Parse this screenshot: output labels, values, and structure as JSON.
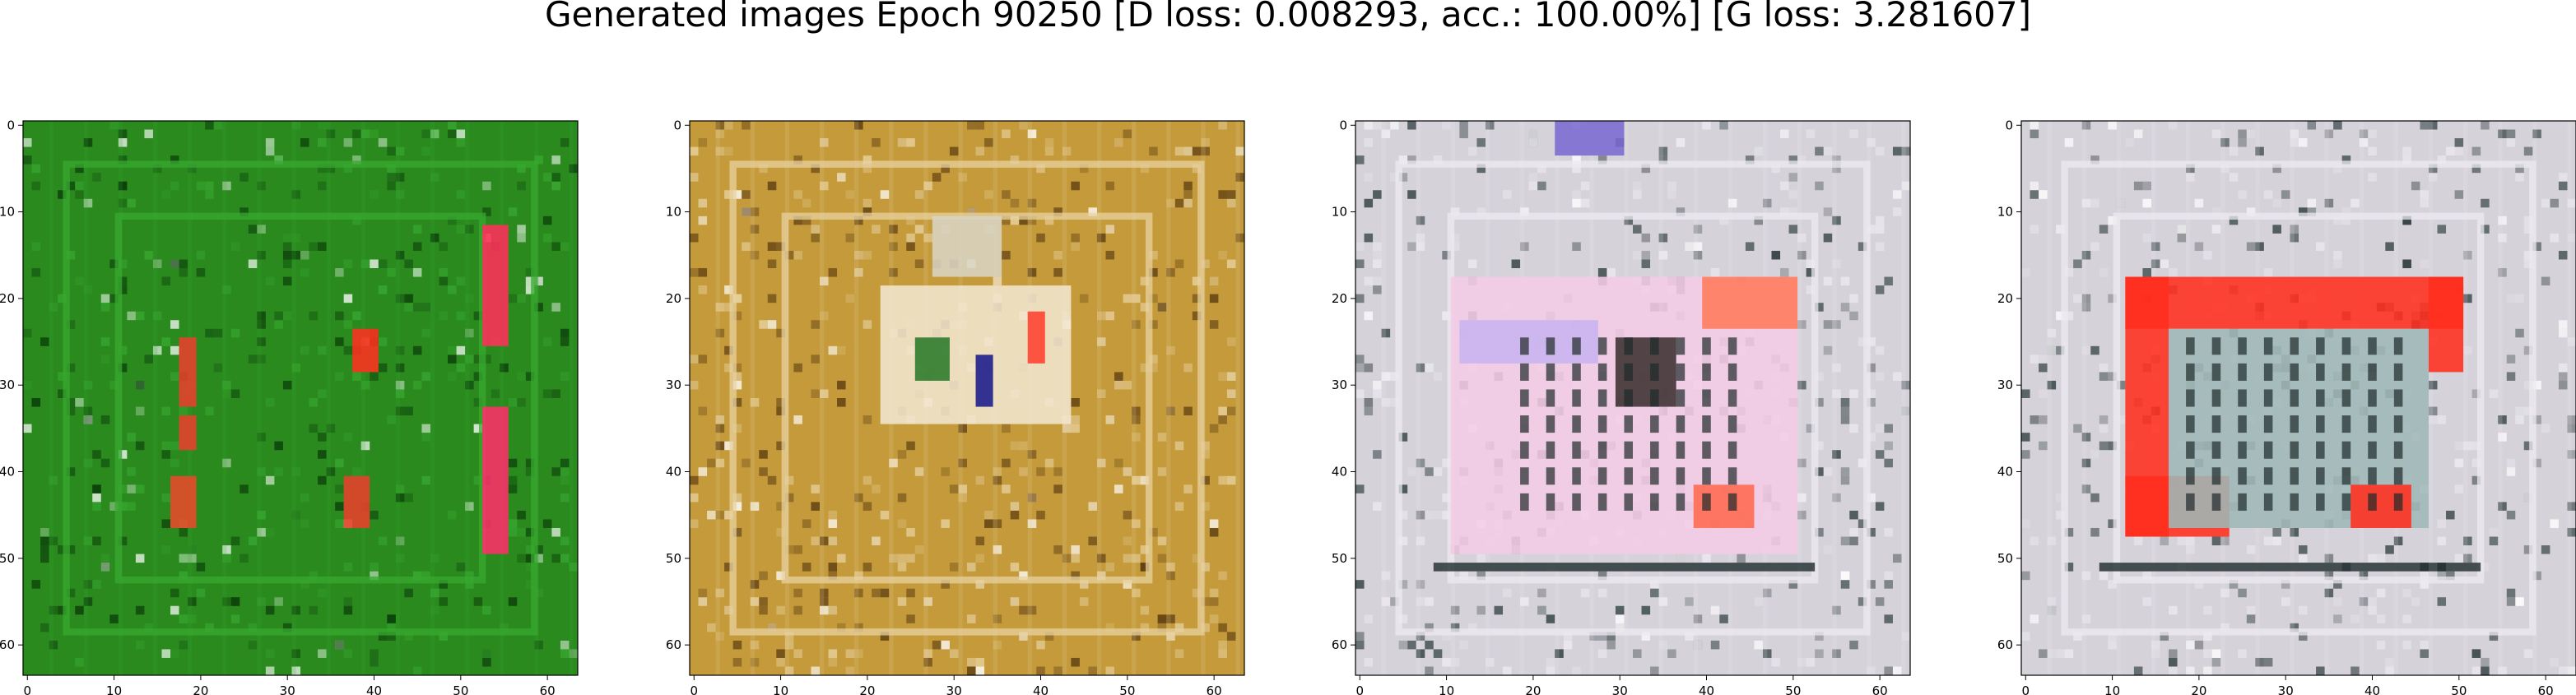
{
  "title": "Generated images Epoch 90250 [D loss: 0.008293, acc.: 100.00%] [G loss: 3.281607]",
  "axes": {
    "x_ticks": [
      "0",
      "10",
      "20",
      "30",
      "40",
      "50",
      "60"
    ],
    "y_ticks": [
      "0",
      "10",
      "20",
      "30",
      "40",
      "50",
      "60"
    ],
    "extent": [
      0,
      64
    ]
  },
  "panels": [
    {
      "name": "generated-image-1",
      "bg": "#2a8a1e",
      "frame": "#38a830",
      "accent": "#ff3a2a",
      "noise": "#0b3d0a",
      "rects": [
        {
          "x0": 53,
          "x1": 56,
          "y0": 12,
          "y1": 26,
          "c": "#ff2f5a"
        },
        {
          "x0": 53,
          "x1": 56,
          "y0": 33,
          "y1": 50,
          "c": "#ff2f6a"
        },
        {
          "x0": 18,
          "x1": 20,
          "y0": 25,
          "y1": 33,
          "c": "#e8402a"
        },
        {
          "x0": 18,
          "x1": 20,
          "y0": 34,
          "y1": 38,
          "c": "#e8402a"
        },
        {
          "x0": 17,
          "x1": 20,
          "y0": 41,
          "y1": 47,
          "c": "#e84a2a"
        },
        {
          "x0": 38,
          "x1": 41,
          "y0": 24,
          "y1": 29,
          "c": "#ff3020"
        },
        {
          "x0": 37,
          "x1": 40,
          "y0": 41,
          "y1": 47,
          "c": "#e8402a"
        }
      ]
    },
    {
      "name": "generated-image-2",
      "bg": "#c49a3a",
      "frame": "#e8d2a0",
      "accent": "#ff4a3a",
      "noise": "#5a3a10",
      "rects": [
        {
          "x0": 22,
          "x1": 44,
          "y0": 19,
          "y1": 35,
          "c": "#f1e6cf"
        },
        {
          "x0": 26,
          "x1": 30,
          "y0": 25,
          "y1": 30,
          "c": "#2a7a2a"
        },
        {
          "x0": 33,
          "x1": 35,
          "y0": 27,
          "y1": 33,
          "c": "#1a1a8a"
        },
        {
          "x0": 39,
          "x1": 41,
          "y0": 22,
          "y1": 28,
          "c": "#ff4030"
        },
        {
          "x0": 28,
          "x1": 36,
          "y0": 11,
          "y1": 18,
          "c": "#d8d4c4"
        }
      ]
    },
    {
      "name": "generated-image-3",
      "bg": "#d6d2da",
      "frame": "#eceaf0",
      "accent": "#ff6a50",
      "noise": "#2a3a3a",
      "rects": [
        {
          "x0": 11,
          "x1": 51,
          "y0": 18,
          "y1": 50,
          "c": "#f4cce6"
        },
        {
          "x0": 40,
          "x1": 51,
          "y0": 18,
          "y1": 24,
          "c": "#ff7a5a"
        },
        {
          "x0": 12,
          "x1": 28,
          "y0": 23,
          "y1": 28,
          "c": "#c8b4f0"
        },
        {
          "x0": 30,
          "x1": 37,
          "y0": 25,
          "y1": 33,
          "c": "#3a3030"
        },
        {
          "x0": 39,
          "x1": 46,
          "y0": 42,
          "y1": 47,
          "c": "#ff6a50"
        },
        {
          "x0": 23,
          "x1": 31,
          "y0": 0,
          "y1": 4,
          "c": "#7a6ad0"
        }
      ]
    },
    {
      "name": "generated-image-4",
      "bg": "#d6d2da",
      "frame": "#eceaf0",
      "accent": "#ff2e1e",
      "noise": "#2a3a3a",
      "rects": [
        {
          "x0": 12,
          "x1": 51,
          "y0": 18,
          "y1": 24,
          "c": "#ff2e1e"
        },
        {
          "x0": 12,
          "x1": 17,
          "y0": 18,
          "y1": 48,
          "c": "#ff2e1e"
        },
        {
          "x0": 12,
          "x1": 24,
          "y0": 41,
          "y1": 48,
          "c": "#ff2e1e"
        },
        {
          "x0": 47,
          "x1": 51,
          "y0": 18,
          "y1": 29,
          "c": "#ff2e1e"
        },
        {
          "x0": 17,
          "x1": 47,
          "y0": 24,
          "y1": 47,
          "c": "#9fb7b6"
        },
        {
          "x0": 38,
          "x1": 45,
          "y0": 42,
          "y1": 47,
          "c": "#ff2e1e"
        }
      ]
    }
  ]
}
